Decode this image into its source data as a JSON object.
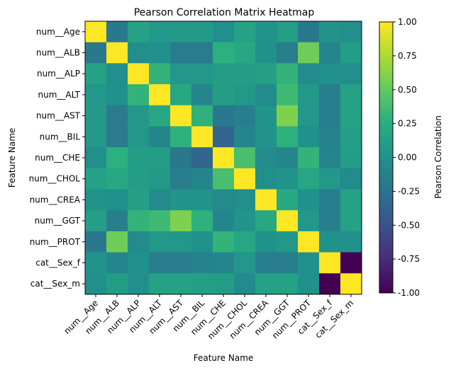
{
  "chart_data": {
    "type": "heatmap",
    "title": "Pearson Correlation Matrix Heatmap",
    "xlabel": "Feature Name",
    "ylabel": "Feature Name",
    "colorbar_label": "Pearson Correlation",
    "colormap": "viridis",
    "vmin": -1.0,
    "vmax": 1.0,
    "colorbar_ticks": [
      "1.00",
      "0.75",
      "0.50",
      "0.25",
      "0.00",
      "-0.25",
      "-0.50",
      "-0.75",
      "-1.00"
    ],
    "colorbar_tick_values": [
      1.0,
      0.75,
      0.5,
      0.25,
      0.0,
      -0.25,
      -0.5,
      -0.75,
      -1.0
    ],
    "labels": [
      "num__Age",
      "num__ALB",
      "num__ALP",
      "num__ALT",
      "num__AST",
      "num__BIL",
      "num__CHE",
      "num__CHOL",
      "num__CREA",
      "num__GGT",
      "num__PROT",
      "cat__Sex_f",
      "cat__Sex_m"
    ],
    "matrix": [
      [
        1.0,
        -0.2,
        0.15,
        0.05,
        0.08,
        0.07,
        -0.02,
        0.14,
        0.02,
        0.11,
        -0.2,
        0.02,
        -0.02
      ],
      [
        -0.2,
        1.0,
        -0.02,
        0.0,
        -0.18,
        -0.18,
        0.27,
        0.2,
        0.0,
        -0.15,
        0.55,
        -0.1,
        0.1
      ],
      [
        0.15,
        -0.02,
        1.0,
        0.3,
        0.05,
        0.05,
        0.1,
        0.1,
        0.13,
        0.3,
        -0.05,
        0.0,
        -0.02
      ],
      [
        0.05,
        0.0,
        0.3,
        1.0,
        0.2,
        -0.1,
        0.1,
        0.06,
        -0.05,
        0.35,
        0.06,
        -0.15,
        0.15
      ],
      [
        0.08,
        -0.18,
        0.05,
        0.2,
        1.0,
        0.28,
        -0.2,
        -0.15,
        0.03,
        0.6,
        0.05,
        -0.15,
        0.15
      ],
      [
        0.07,
        -0.18,
        0.05,
        -0.1,
        0.28,
        1.0,
        -0.35,
        -0.1,
        0.02,
        0.28,
        0.0,
        -0.12,
        0.12
      ],
      [
        -0.02,
        0.27,
        0.1,
        0.1,
        -0.2,
        -0.35,
        1.0,
        0.4,
        -0.05,
        -0.1,
        0.3,
        -0.1,
        0.1
      ],
      [
        0.14,
        0.2,
        0.1,
        0.06,
        -0.15,
        -0.1,
        0.4,
        1.0,
        -0.02,
        0.03,
        0.18,
        0.05,
        -0.05
      ],
      [
        0.02,
        0.0,
        0.13,
        -0.05,
        0.03,
        0.02,
        -0.05,
        -0.02,
        1.0,
        0.2,
        0.0,
        -0.15,
        0.15
      ],
      [
        0.11,
        -0.15,
        0.3,
        0.35,
        0.6,
        0.28,
        -0.1,
        0.03,
        0.2,
        1.0,
        0.05,
        -0.15,
        0.15
      ],
      [
        -0.2,
        0.55,
        -0.05,
        0.06,
        0.05,
        0.0,
        0.3,
        0.18,
        0.0,
        0.05,
        1.0,
        0.0,
        0.0
      ],
      [
        0.02,
        -0.1,
        0.0,
        -0.15,
        -0.15,
        -0.12,
        -0.1,
        0.05,
        -0.15,
        -0.15,
        0.0,
        1.0,
        -1.0
      ],
      [
        -0.02,
        0.1,
        -0.02,
        0.15,
        0.15,
        0.12,
        0.1,
        -0.05,
        0.15,
        0.15,
        0.0,
        -1.0,
        1.0
      ]
    ]
  }
}
